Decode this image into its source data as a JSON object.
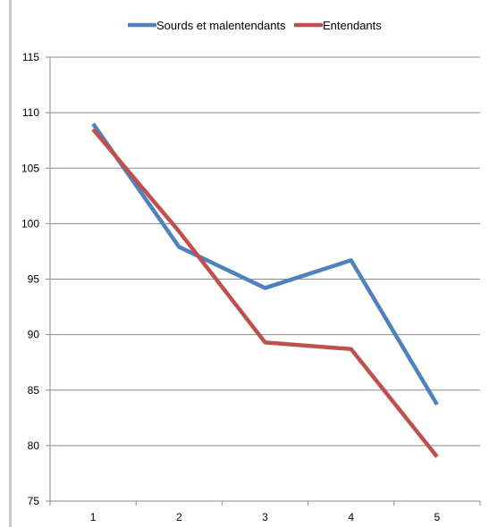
{
  "chart_data": {
    "type": "line",
    "title": "",
    "xlabel": "",
    "ylabel": "",
    "categories": [
      "1",
      "2",
      "3",
      "4",
      "5"
    ],
    "ylim": [
      75,
      115
    ],
    "yticks": [
      75,
      80,
      85,
      90,
      95,
      100,
      105,
      110,
      115
    ],
    "grid": true,
    "legend_position": "top",
    "series": [
      {
        "name": "Sourds et malentendants",
        "color": "#4f81bd",
        "values": [
          109.0,
          97.9,
          94.2,
          96.7,
          83.7
        ]
      },
      {
        "name": "Entendants",
        "color": "#c0504d",
        "values": [
          108.5,
          99.3,
          89.3,
          88.7,
          79.0
        ]
      }
    ]
  }
}
